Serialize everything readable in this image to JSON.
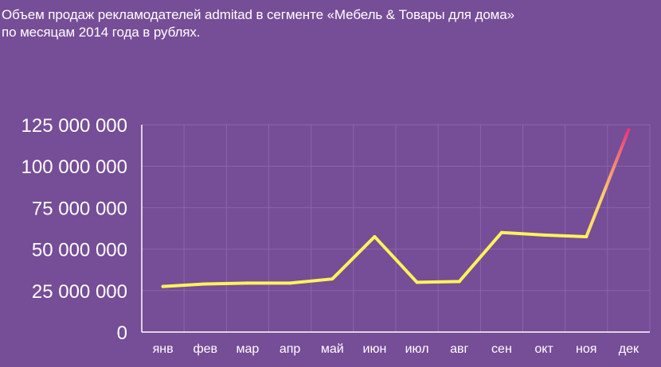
{
  "chart_data": {
    "type": "line",
    "title_line1": "Объем продаж рекламодателей admitad в сегменте «Мебель & Товары для дома»",
    "title_line2": "по месяцам 2014 года в рублях.",
    "categories": [
      "янв",
      "фев",
      "мар",
      "апр",
      "май",
      "июн",
      "июл",
      "авг",
      "сен",
      "окт",
      "ноя",
      "дек"
    ],
    "series": [
      {
        "values": [
          27500000,
          29000000,
          29500000,
          29500000,
          32000000,
          57500000,
          30000000,
          30500000,
          60000000,
          58500000,
          57500000,
          122000000
        ]
      }
    ],
    "ylim": [
      0,
      125000000
    ],
    "yticks": [
      0,
      25000000,
      50000000,
      75000000,
      100000000,
      125000000
    ],
    "ytick_labels": [
      "0",
      "25 000 000",
      "50 000 000",
      "75 000 000",
      "100 000 000",
      "125 000 000"
    ],
    "grid": true,
    "colors": {
      "background": "#764d97",
      "line_start": "#fff35a",
      "line_mid": "#ffcf6a",
      "line_end": "#e8367a",
      "grid": "#8a66a8",
      "axis": "#ffffff"
    }
  }
}
